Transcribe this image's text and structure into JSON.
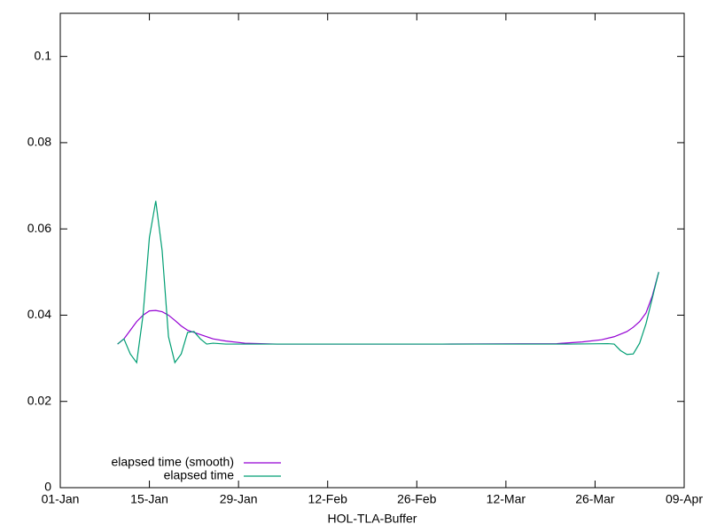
{
  "chart_data": {
    "type": "line",
    "xlabel": "HOL-TLA-Buffer",
    "xlim": [
      "01-Jan",
      "09-Apr"
    ],
    "xticks": [
      "01-Jan",
      "15-Jan",
      "29-Jan",
      "12-Feb",
      "26-Feb",
      "12-Mar",
      "26-Mar",
      "09-Apr"
    ],
    "ylim": [
      0,
      0.11
    ],
    "yticks": [
      0,
      0.02,
      0.04,
      0.06,
      0.08,
      0.1
    ],
    "legend": "bottom-left",
    "series": [
      {
        "name": "elapsed time (smooth)",
        "color": "#9400d3",
        "x": [
          "10-Jan",
          "11-Jan",
          "12-Jan",
          "13-Jan",
          "14-Jan",
          "15-Jan",
          "16-Jan",
          "17-Jan",
          "18-Jan",
          "19-Jan",
          "20-Jan",
          "21-Jan",
          "23-Jan",
          "25-Jan",
          "27-Jan",
          "30-Jan",
          "04-Feb",
          "02-Mar",
          "20-Mar",
          "24-Mar",
          "27-Mar",
          "29-Mar",
          "31-Mar",
          "01-Apr",
          "02-Apr",
          "03-Apr",
          "04-Apr",
          "05-Apr"
        ],
        "values": [
          0.0333,
          0.0345,
          0.0365,
          0.0385,
          0.04,
          0.041,
          0.0411,
          0.0408,
          0.04,
          0.0388,
          0.0375,
          0.0365,
          0.0355,
          0.0345,
          0.034,
          0.0335,
          0.0333,
          0.0333,
          0.0334,
          0.0338,
          0.0343,
          0.035,
          0.0362,
          0.0372,
          0.0385,
          0.0405,
          0.0445,
          0.05
        ]
      },
      {
        "name": "elapsed time",
        "color": "#009e73",
        "x": [
          "10-Jan",
          "11-Jan",
          "12-Jan",
          "13-Jan",
          "14-Jan",
          "15-Jan",
          "16-Jan",
          "17-Jan",
          "18-Jan",
          "19-Jan",
          "20-Jan",
          "21-Jan",
          "22-Jan",
          "23-Jan",
          "24-Jan",
          "25-Jan",
          "27-Jan",
          "10-Feb",
          "02-Mar",
          "22-Mar",
          "28-Mar",
          "29-Mar",
          "30-Mar",
          "31-Mar",
          "01-Apr",
          "02-Apr",
          "03-Apr",
          "04-Apr",
          "05-Apr"
        ],
        "values": [
          0.0333,
          0.0345,
          0.031,
          0.029,
          0.04,
          0.058,
          0.0665,
          0.055,
          0.035,
          0.029,
          0.031,
          0.036,
          0.0362,
          0.0345,
          0.0333,
          0.0335,
          0.0333,
          0.0333,
          0.0333,
          0.0333,
          0.0334,
          0.0333,
          0.0318,
          0.0309,
          0.031,
          0.0335,
          0.038,
          0.044,
          0.05
        ]
      }
    ]
  }
}
